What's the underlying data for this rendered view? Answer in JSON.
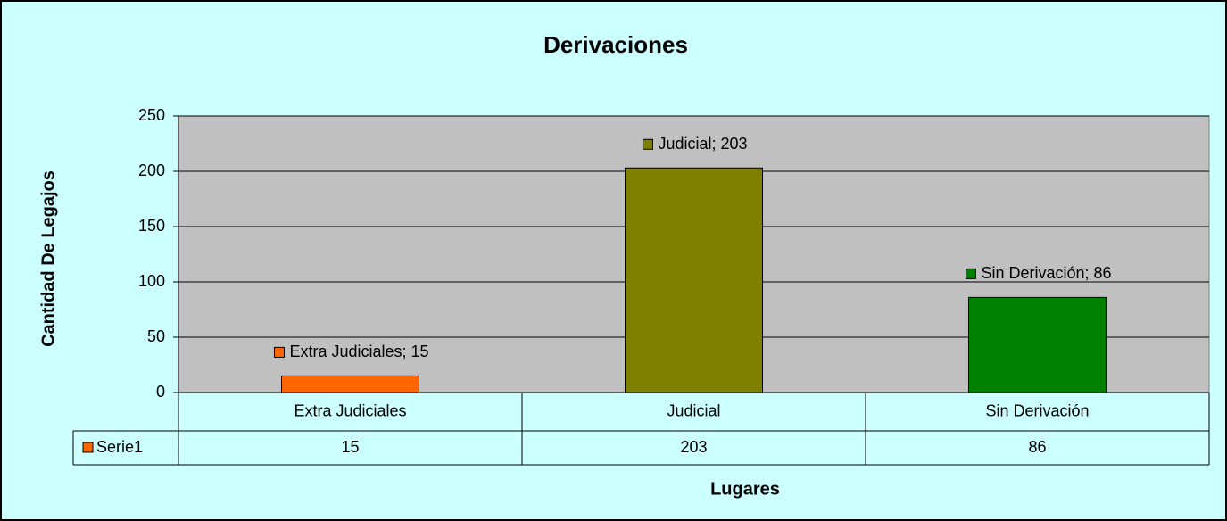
{
  "chart_data": {
    "type": "bar",
    "title": "Derivaciones",
    "x_label": "Lugares",
    "y_label": "Cantidad De Legajos",
    "categories": [
      "Extra Judiciales",
      "Judicial",
      "Sin Derivación"
    ],
    "series": [
      {
        "name": "Serie1",
        "color": "#ff6600",
        "colors": [
          "#ff6600",
          "#808000",
          "#008000"
        ],
        "values": [
          15,
          203,
          86
        ],
        "value_labels": [
          "Extra Judiciales; 15",
          "Judicial; 203",
          "Sin Derivación; 86"
        ]
      }
    ],
    "ylim": [
      0,
      250
    ],
    "yticks": [
      0,
      50,
      100,
      150,
      200,
      250
    ],
    "grid": true
  }
}
